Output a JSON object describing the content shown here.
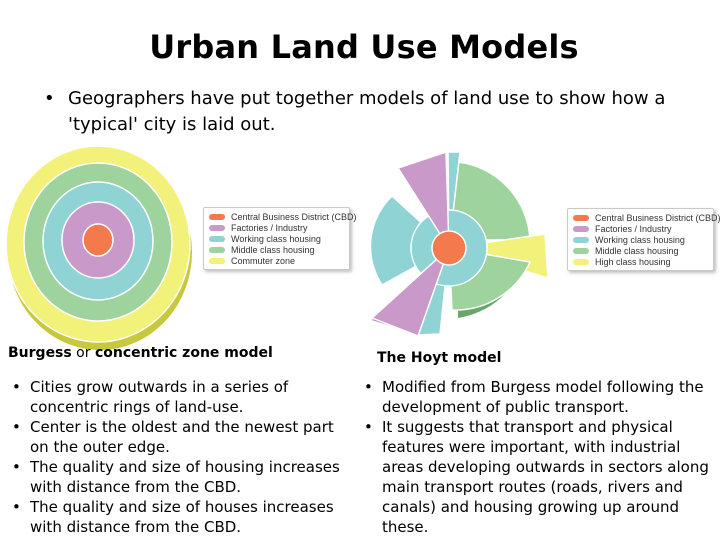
{
  "title": "Urban Land Use Models",
  "intro": "Geographers have put together models of land use to show how a 'typical' city is laid out.",
  "colors": {
    "cbd": "#f47a4d",
    "factories": "#c999c9",
    "working": "#8fd3d5",
    "middle": "#9ed39e",
    "commuter": "#f2f27a",
    "high": "#f2f27a"
  },
  "burgess": {
    "legend": [
      {
        "label": "Central Business District (CBD)",
        "color": "#f47a4d"
      },
      {
        "label": "Factories / Industry",
        "color": "#c999c9"
      },
      {
        "label": "Working class housing",
        "color": "#8fd3d5"
      },
      {
        "label": "Middle class housing",
        "color": "#9ed39e"
      },
      {
        "label": "Commuter zone",
        "color": "#f2f27a"
      }
    ],
    "caption_bold_1": "Burgess",
    "caption_plain": " or ",
    "caption_bold_2": "concentric zone model",
    "bullets": [
      "Cities grow outwards in a series of concentric rings of land-use.",
      "Center is the oldest and the newest part on the outer edge.",
      "The quality and size of housing increases with distance from the CBD.",
      "The quality and size of houses increases with distance from the CBD."
    ]
  },
  "hoyt": {
    "legend": [
      {
        "label": "Central Business District (CBD)",
        "color": "#f47a4d"
      },
      {
        "label": "Factories / Industry",
        "color": "#c999c9"
      },
      {
        "label": "Working class housing",
        "color": "#8fd3d5"
      },
      {
        "label": "Middle class housing",
        "color": "#9ed39e"
      },
      {
        "label": "High class housing",
        "color": "#f2f27a"
      }
    ],
    "caption": "The Hoyt model",
    "bullets": [
      "Modified from Burgess model following the development of public transport.",
      "It suggests that transport and physical features were important, with industrial areas developing outwards in sectors along main transport routes (roads, rivers and canals) and housing growing up around these."
    ]
  }
}
